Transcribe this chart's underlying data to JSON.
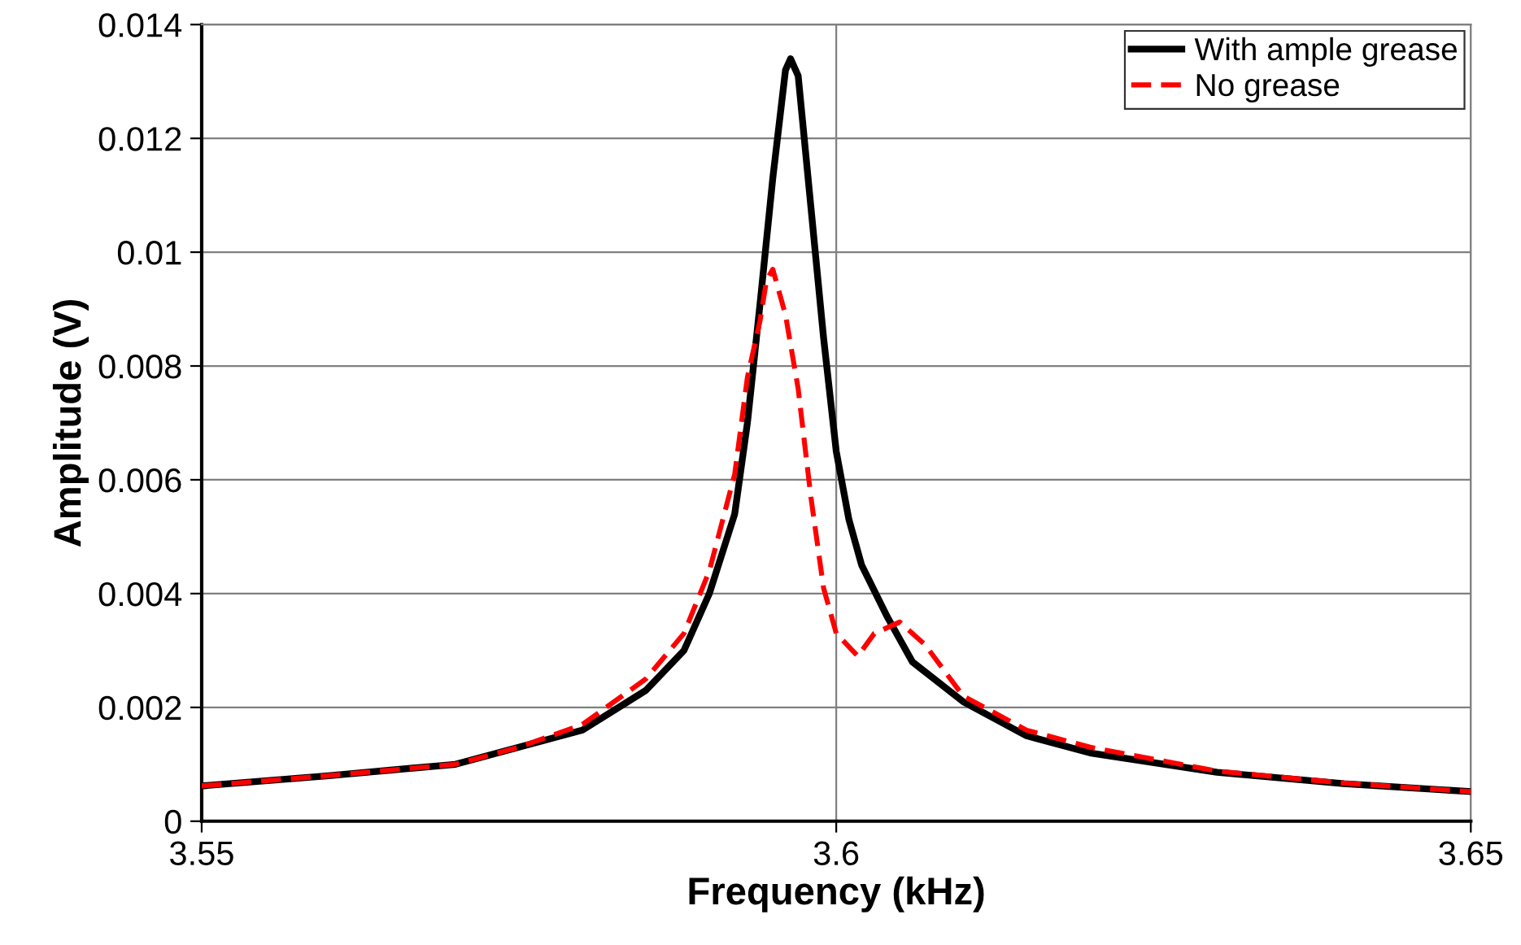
{
  "chart_data": {
    "type": "line",
    "xlabel": "Frequency (kHz)",
    "ylabel": "Amplitude (V)",
    "xlim": [
      3.55,
      3.65
    ],
    "xticks": [
      3.55,
      3.6,
      3.65
    ],
    "ylim": [
      0,
      0.014
    ],
    "yticks": [
      0,
      0.002,
      0.004,
      0.006,
      0.008,
      0.01,
      0.012,
      0.014
    ],
    "grid": true,
    "legend": "top right",
    "marker": "none",
    "series": [
      {
        "name": "With ample grease",
        "color": "#000000",
        "line_style": "solid",
        "x": [
          3.55,
          3.56,
          3.57,
          3.575,
          3.58,
          3.585,
          3.588,
          3.59,
          3.592,
          3.593,
          3.594,
          3.595,
          3.596,
          3.5964,
          3.597,
          3.598,
          3.599,
          3.6,
          3.601,
          3.602,
          3.604,
          3.606,
          3.61,
          3.615,
          3.62,
          3.63,
          3.64,
          3.65
        ],
        "values": [
          0.00062,
          0.0008,
          0.001,
          0.0013,
          0.0016,
          0.0023,
          0.003,
          0.004,
          0.0054,
          0.007,
          0.0091,
          0.0113,
          0.0132,
          0.0134,
          0.0131,
          0.0108,
          0.0085,
          0.0065,
          0.0053,
          0.0045,
          0.0036,
          0.0028,
          0.0021,
          0.0015,
          0.0012,
          0.00086,
          0.00066,
          0.00052
        ]
      },
      {
        "name": "No grease",
        "color": "#ff0000",
        "line_style": "dashed",
        "x": [
          3.55,
          3.56,
          3.57,
          3.575,
          3.58,
          3.585,
          3.588,
          3.59,
          3.592,
          3.593,
          3.594,
          3.5945,
          3.595,
          3.596,
          3.597,
          3.598,
          3.599,
          3.6,
          3.6017,
          3.603,
          3.605,
          3.607,
          3.61,
          3.615,
          3.62,
          3.63,
          3.64,
          3.65
        ],
        "values": [
          0.00062,
          0.0008,
          0.001,
          0.0013,
          0.0017,
          0.0025,
          0.0033,
          0.0044,
          0.0061,
          0.0078,
          0.0088,
          0.0095,
          0.0097,
          0.0089,
          0.0076,
          0.0057,
          0.0041,
          0.0033,
          0.0029,
          0.0033,
          0.0035,
          0.0031,
          0.0022,
          0.0016,
          0.0013,
          0.00088,
          0.00067,
          0.00052
        ]
      }
    ]
  }
}
